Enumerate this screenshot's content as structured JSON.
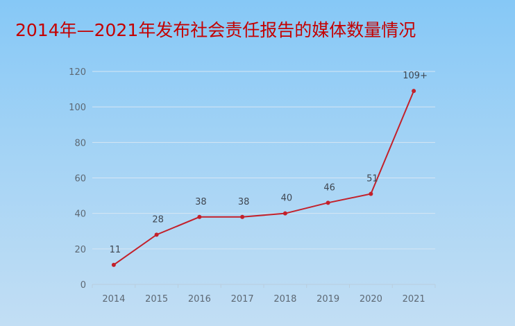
{
  "chart_data": {
    "type": "line",
    "title": "2014年—2021年发布社会责任报告的媒体数量情况",
    "categories": [
      "2014",
      "2015",
      "2016",
      "2017",
      "2018",
      "2019",
      "2020",
      "2021"
    ],
    "series": [
      {
        "values": [
          11,
          28,
          38,
          38,
          40,
          46,
          51,
          109
        ],
        "data_labels": [
          "11",
          "28",
          "38",
          "38",
          "40",
          "46",
          "51",
          "109+"
        ]
      }
    ],
    "yticks": [
      "0",
      "20",
      "40",
      "60",
      "80",
      "100",
      "120"
    ],
    "ylim": [
      0,
      120
    ],
    "xlabel": "",
    "ylabel": "",
    "grid": true,
    "colors": {
      "title": "#c40000",
      "line": "#c3202a",
      "background_top": "#86c8f6",
      "background_bottom": "#c2def4"
    }
  }
}
